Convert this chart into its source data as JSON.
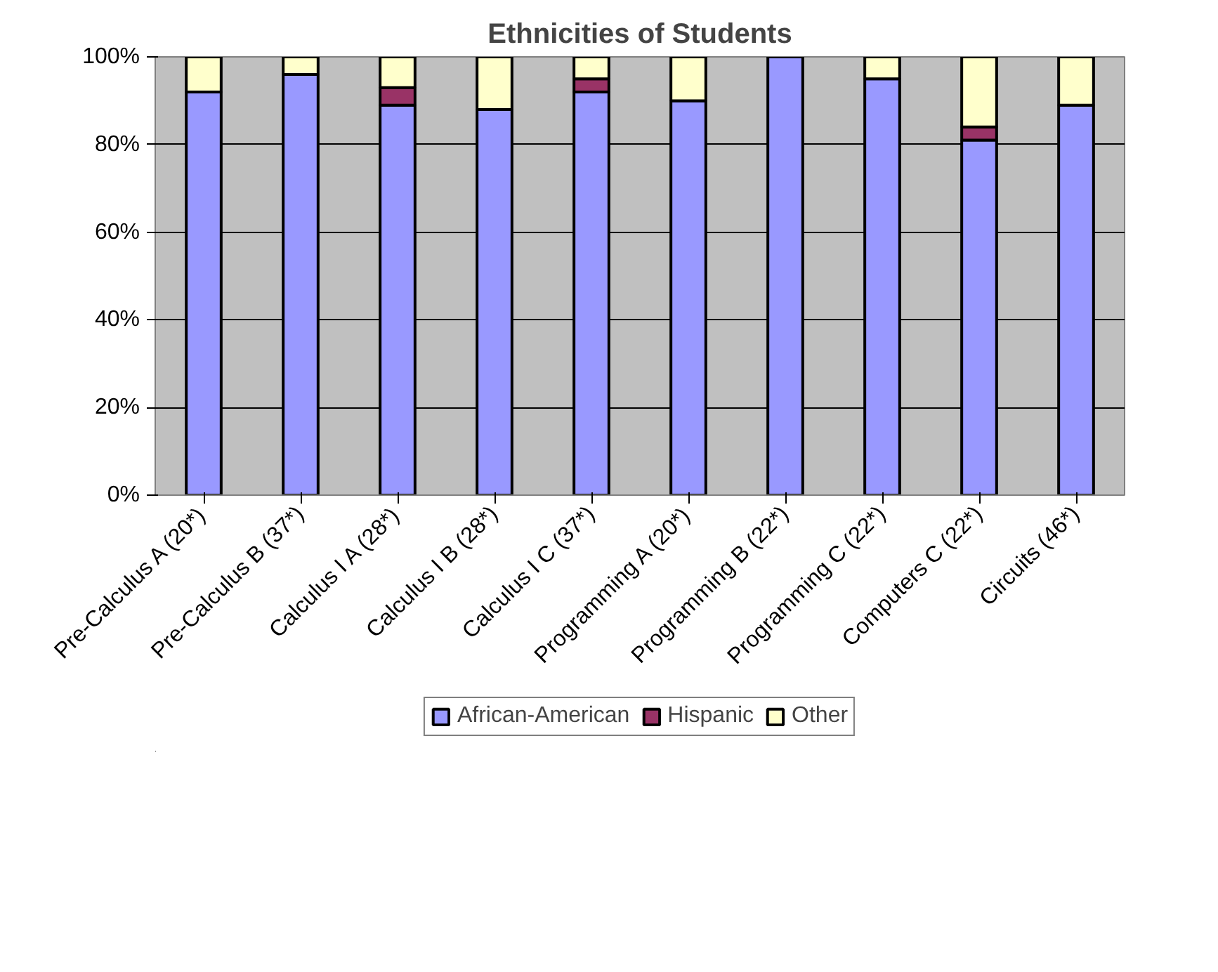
{
  "chart_data": {
    "type": "bar",
    "title": "Ethnicities of Students",
    "stacked": true,
    "categories": [
      "Pre-Calculus A (20*)",
      "Pre-Calculus B (37*)",
      "Calculus I A (28*)",
      "Calculus I B (28*)",
      "Calculus I C (37*)",
      "Programming A (20*)",
      "Programming B (22*)",
      "Programming C (22*)",
      "Computers C (22*)",
      "Circuits (46*)"
    ],
    "series": [
      {
        "name": "African-American",
        "color": "#9999ff",
        "values": [
          92,
          96,
          89,
          88,
          92,
          90,
          100,
          95,
          81,
          89
        ]
      },
      {
        "name": "Hispanic",
        "color": "#993366",
        "values": [
          null,
          null,
          4,
          null,
          3,
          null,
          null,
          null,
          3,
          null
        ]
      },
      {
        "name": "Other",
        "color": "#ffffcc",
        "values": [
          8,
          4,
          7,
          12,
          5,
          10,
          null,
          5,
          16,
          11
        ]
      }
    ],
    "ylim": [
      0,
      100
    ],
    "yticks": [
      {
        "value": 0,
        "label": "0%"
      },
      {
        "value": 20,
        "label": "20%"
      },
      {
        "value": 40,
        "label": "40%"
      },
      {
        "value": 60,
        "label": "60%"
      },
      {
        "value": 80,
        "label": "80%"
      },
      {
        "value": 100,
        "label": "100%"
      }
    ],
    "grid": "y",
    "legend": "bottom"
  }
}
